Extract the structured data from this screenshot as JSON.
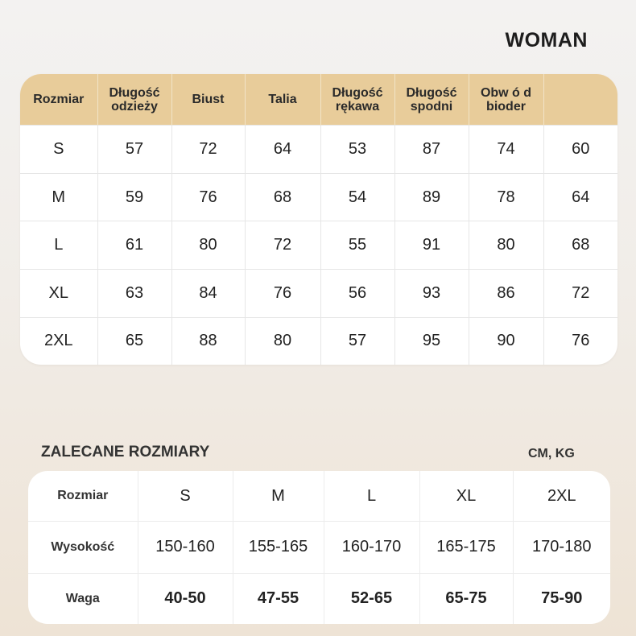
{
  "title": "WOMAN",
  "size_chart": {
    "headers": [
      "Rozmiar",
      "Długość odzieży",
      "Biust",
      "Talia",
      "Długość rękawa",
      "Długość spodni",
      "Obw ó d bioder",
      ""
    ],
    "header_lines": [
      [
        "Rozmiar"
      ],
      [
        "Długość",
        "odzieży"
      ],
      [
        "Biust"
      ],
      [
        "Talia"
      ],
      [
        "Długość",
        "rękawa"
      ],
      [
        "Długość",
        "spodni"
      ],
      [
        "Obw ó d",
        "bioder"
      ],
      [
        ""
      ]
    ],
    "rows": [
      [
        "S",
        "57",
        "72",
        "64",
        "53",
        "87",
        "74",
        "60"
      ],
      [
        "M",
        "59",
        "76",
        "68",
        "54",
        "89",
        "78",
        "64"
      ],
      [
        "L",
        "61",
        "80",
        "72",
        "55",
        "91",
        "80",
        "68"
      ],
      [
        "XL",
        "63",
        "84",
        "76",
        "56",
        "93",
        "86",
        "72"
      ],
      [
        "2XL",
        "65",
        "88",
        "80",
        "57",
        "95",
        "90",
        "76"
      ]
    ]
  },
  "recommended": {
    "title": "ZALECANE ROZMIARY",
    "units": "CM, KG",
    "rows": [
      {
        "label": "Rozmiar",
        "values": [
          "S",
          "M",
          "L",
          "XL",
          "2XL"
        ]
      },
      {
        "label": "Wysokość",
        "values": [
          "150-160",
          "155-165",
          "160-170",
          "165-175",
          "170-180"
        ]
      },
      {
        "label": "Waga",
        "values": [
          "40-50",
          "47-55",
          "52-65",
          "65-75",
          "75-90"
        ]
      }
    ]
  },
  "colors": {
    "header_bg": "#e8cc9a"
  }
}
